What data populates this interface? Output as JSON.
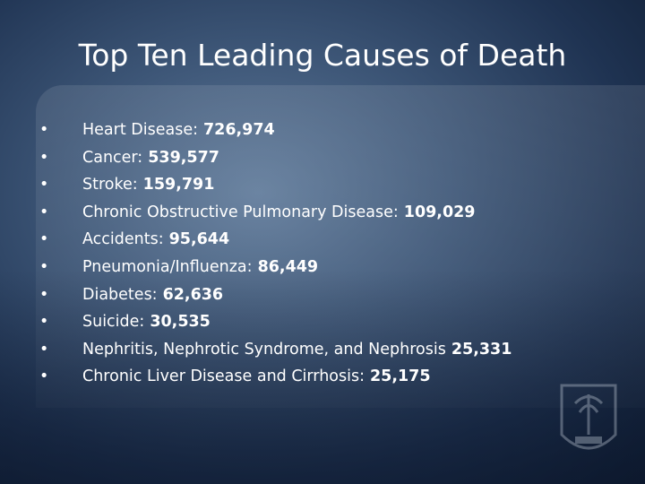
{
  "title": "Top Ten Leading Causes of Death",
  "items": [
    {
      "label": "Heart Disease:",
      "value": "726,974"
    },
    {
      "label": "Cancer:",
      "value": "539,577"
    },
    {
      "label": "Stroke:",
      "value": "159,791"
    },
    {
      "label": "Chronic Obstructive Pulmonary Disease:",
      "value": "109,029"
    },
    {
      "label": "Accidents:",
      "value": "95,644"
    },
    {
      "label": "Pneumonia/Influenza:",
      "value": "86,449"
    },
    {
      "label": "Diabetes:",
      "value": "62,636"
    },
    {
      "label": "Suicide:",
      "value": "30,535"
    },
    {
      "label": "Nephritis, Nephrotic Syndrome, and Nephrosis",
      "value": "25,331"
    },
    {
      "label": "Chronic Liver Disease and Cirrhosis:",
      "value": "25,175"
    }
  ]
}
